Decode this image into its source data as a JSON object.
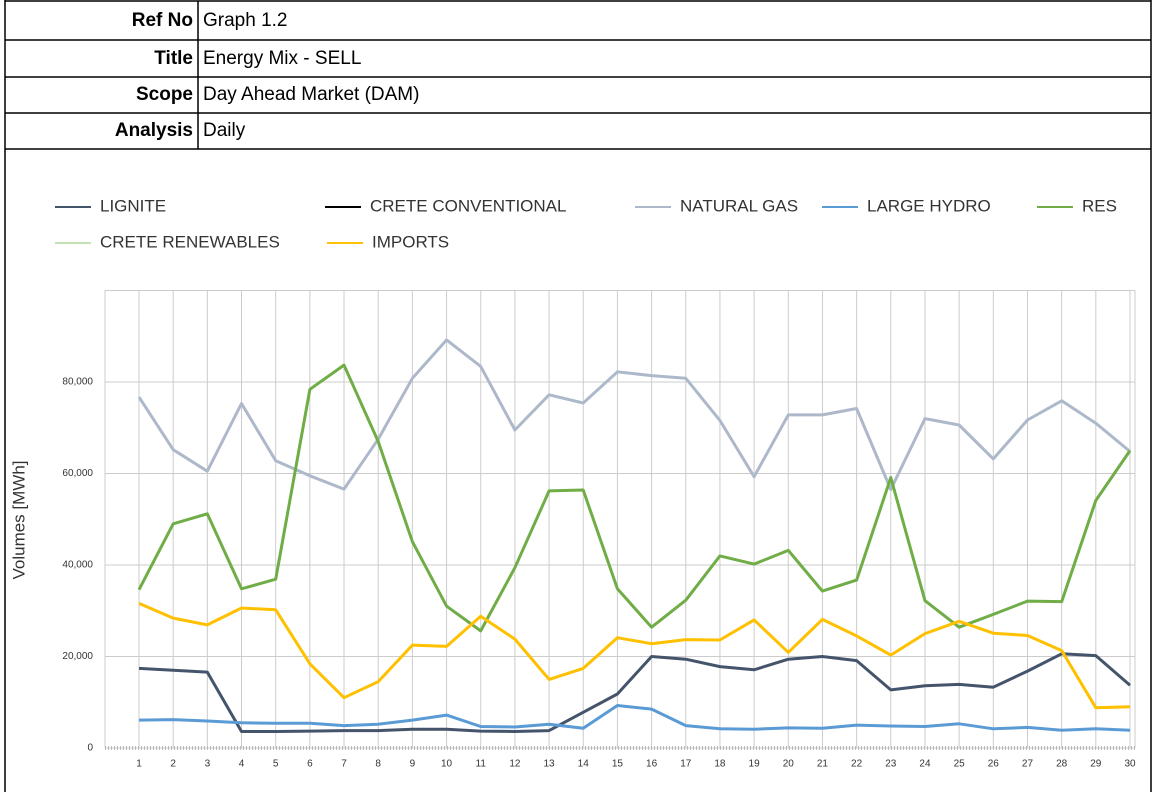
{
  "header": {
    "rows": [
      {
        "label": "Ref No",
        "value": "Graph 1.2"
      },
      {
        "label": "Title",
        "value": "Energy Mix - SELL"
      },
      {
        "label": "Scope",
        "value": "Day Ahead Market (DAM)"
      },
      {
        "label": "Analysis",
        "value": "Daily"
      }
    ]
  },
  "chart_data": {
    "type": "line",
    "y_label": "Volumes [MWh]",
    "categories": [
      "1",
      "2",
      "3",
      "4",
      "5",
      "6",
      "7",
      "8",
      "9",
      "10",
      "11",
      "12",
      "13",
      "14",
      "15",
      "16",
      "17",
      "18",
      "19",
      "20",
      "21",
      "22",
      "23",
      "24",
      "25",
      "26",
      "27",
      "28",
      "29",
      "30"
    ],
    "ylim": [
      0,
      100000
    ],
    "yticks": [
      0,
      {
        "value": 20000,
        "label": "20,000"
      },
      {
        "value": 40000,
        "label": "40,000"
      },
      {
        "value": 60000,
        "label": "60,000"
      },
      {
        "value": 80000,
        "label": "80,000"
      }
    ],
    "grid": true,
    "series": [
      {
        "name": "LIGNITE",
        "color": "#44546a",
        "values": [
          17400,
          17000,
          16600,
          3600,
          3600,
          3700,
          3800,
          3800,
          4100,
          4100,
          3700,
          3600,
          3800,
          7800,
          11800,
          20000,
          19400,
          17800,
          17100,
          19400,
          20000,
          19100,
          12700,
          13600,
          13900,
          13300,
          16800,
          20600,
          20200,
          13700
        ]
      },
      {
        "name": "CRETE CONVENTIONAL",
        "color": "#000000",
        "values": [
          null,
          null,
          null,
          null,
          null,
          null,
          null,
          null,
          null,
          null,
          null,
          null,
          null,
          null,
          null,
          null,
          null,
          null,
          null,
          null,
          null,
          null,
          null,
          null,
          null,
          null,
          null,
          null,
          null,
          null
        ]
      },
      {
        "name": "NATURAL GAS",
        "color": "#adb9ca",
        "values": [
          76700,
          65200,
          60500,
          75300,
          62800,
          59500,
          56600,
          67500,
          80800,
          89200,
          83400,
          69500,
          77200,
          75400,
          82200,
          81400,
          80800,
          71600,
          59300,
          72800,
          72800,
          74200,
          56500,
          72000,
          70600,
          63200,
          71700,
          75900,
          71000,
          64800
        ]
      },
      {
        "name": "LARGE HYDRO",
        "color": "#5b9bd5",
        "values": [
          6100,
          6200,
          5900,
          5500,
          5400,
          5400,
          4900,
          5200,
          6100,
          7200,
          4700,
          4600,
          5200,
          4300,
          9300,
          8500,
          4900,
          4200,
          4100,
          4400,
          4300,
          5000,
          4800,
          4700,
          5300,
          4200,
          4500,
          3900,
          4200,
          3900
        ]
      },
      {
        "name": "RES",
        "color": "#70ad47",
        "values": [
          34600,
          49000,
          51200,
          34800,
          36900,
          78400,
          83700,
          67000,
          45100,
          31000,
          25600,
          39400,
          56200,
          56400,
          34800,
          26400,
          32300,
          42000,
          40200,
          43200,
          34300,
          36700,
          59100,
          32200,
          26400,
          29200,
          32100,
          32000,
          54100,
          65000
        ]
      },
      {
        "name": "CRETE RENEWABLES",
        "color": "#c5e0b4",
        "values": [
          null,
          null,
          null,
          null,
          null,
          null,
          null,
          null,
          null,
          null,
          null,
          null,
          null,
          null,
          null,
          null,
          null,
          null,
          null,
          null,
          null,
          null,
          null,
          null,
          null,
          null,
          null,
          null,
          null,
          null
        ]
      },
      {
        "name": "IMPORTS",
        "color": "#ffc000",
        "values": [
          31600,
          28400,
          26900,
          30600,
          30200,
          18400,
          11000,
          14500,
          22500,
          22200,
          28800,
          23800,
          15000,
          17400,
          24100,
          22800,
          23700,
          23600,
          28000,
          20900,
          28100,
          24500,
          20300,
          25000,
          27700,
          25100,
          24600,
          21300,
          8800,
          9000
        ]
      }
    ]
  }
}
